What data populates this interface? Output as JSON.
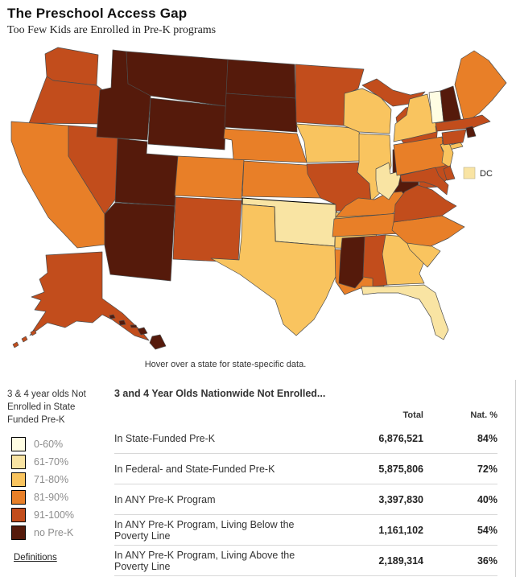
{
  "header": {
    "title": "The Preschool Access Gap",
    "subtitle": "Too Few Kids are Enrolled in Pre-K programs"
  },
  "map": {
    "hover_hint": "Hover over a state for state-specific data.",
    "dc_label": "DC",
    "highlighted_state": "OK",
    "border_color": "#4d4d4d",
    "highlight_border_color": "#000000",
    "category_colors": {
      "0-60": "#FFFDE3",
      "61-70": "#F9E4A3",
      "71-80": "#F9C45F",
      "81-90": "#E87F28",
      "91-100": "#C24D1C",
      "no-prek": "#551A0B"
    },
    "states": {
      "WA": "91-100",
      "OR": "91-100",
      "CA": "81-90",
      "NV": "91-100",
      "ID": "no-prek",
      "MT": "no-prek",
      "WY": "no-prek",
      "UT": "no-prek",
      "AZ": "no-prek",
      "NM": "91-100",
      "CO": "81-90",
      "ND": "no-prek",
      "SD": "no-prek",
      "NE": "81-90",
      "KS": "81-90",
      "OK": "61-70",
      "TX": "71-80",
      "MN": "91-100",
      "IA": "71-80",
      "MO": "91-100",
      "AR": "71-80",
      "LA": "81-90",
      "WI": "71-80",
      "IL": "71-80",
      "MS": "no-prek",
      "MI": "91-100",
      "IN": "no-prek",
      "OH": "91-100",
      "KY": "81-90",
      "TN": "81-90",
      "AL": "91-100",
      "GA": "71-80",
      "FL": "61-70",
      "SC": "71-80",
      "NC": "81-90",
      "VA": "91-100",
      "WV": "61-70",
      "PA": "81-90",
      "NY": "71-80",
      "NJ": "71-80",
      "DE": "91-100",
      "MD": "91-100",
      "VT": "0-60",
      "NH": "no-prek",
      "ME": "81-90",
      "MA": "91-100",
      "RI": "no-prek",
      "CT": "91-100",
      "AK": "91-100",
      "HI": "no-prek",
      "DC": "61-70"
    }
  },
  "legend": {
    "title": "3 & 4 year olds Not Enrolled in State Funded Pre-K",
    "items": [
      {
        "label": "0-60%",
        "color": "#FFFDE3"
      },
      {
        "label": "61-70%",
        "color": "#F9E4A3"
      },
      {
        "label": "71-80%",
        "color": "#F9C45F"
      },
      {
        "label": "81-90%",
        "color": "#E87F28"
      },
      {
        "label": "91-100%",
        "color": "#C24D1C"
      },
      {
        "label": "no Pre-K",
        "color": "#551A0B"
      }
    ],
    "definitions_label": "Definitions"
  },
  "table": {
    "title": "3 and 4 Year Olds Nationwide Not Enrolled...",
    "columns": [
      "Total",
      "Nat. %"
    ],
    "rows": [
      {
        "label": "In State-Funded Pre-K",
        "total": "6,876,521",
        "pct": "84%"
      },
      {
        "label": "In Federal- and State-Funded Pre-K",
        "total": "5,875,806",
        "pct": "72%"
      },
      {
        "label": "In ANY Pre-K Program",
        "total": "3,397,830",
        "pct": "40%"
      },
      {
        "label": "In ANY Pre-K Program, Living Below the Poverty Line",
        "total": "1,161,102",
        "pct": "54%"
      },
      {
        "label": "In ANY Pre-K Program, Living Above the Poverty Line",
        "total": "2,189,314",
        "pct": "36%"
      }
    ]
  }
}
